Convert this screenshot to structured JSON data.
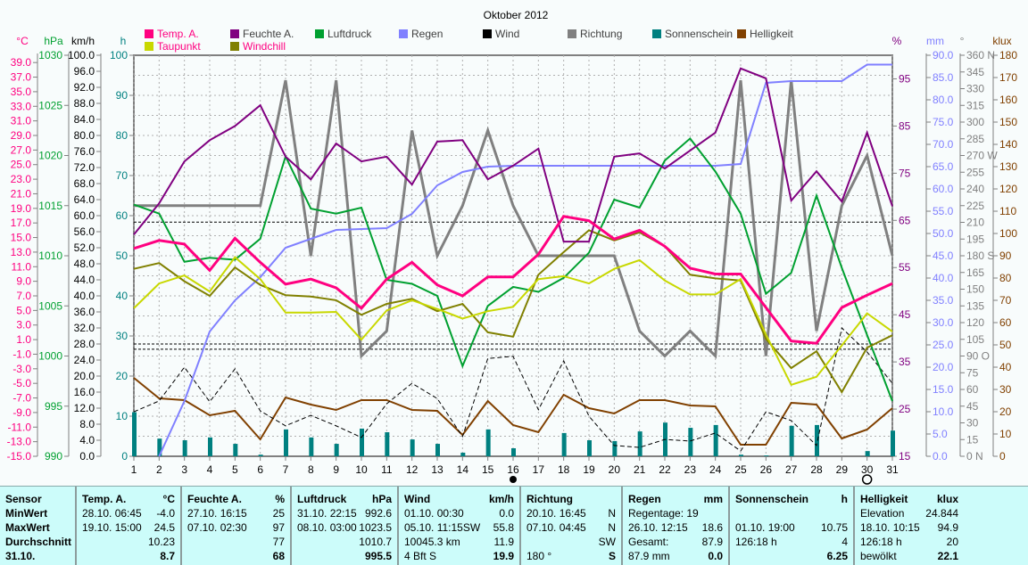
{
  "title": "Oktober 2012",
  "chart_data": {
    "type": "line",
    "title": "Oktober 2012",
    "x": [
      1,
      2,
      3,
      4,
      5,
      6,
      7,
      8,
      9,
      10,
      11,
      12,
      13,
      14,
      15,
      16,
      17,
      18,
      19,
      20,
      21,
      22,
      23,
      24,
      25,
      26,
      27,
      28,
      29,
      30,
      31
    ],
    "axes": {
      "temp": {
        "unit": "°C",
        "min": -15,
        "max": 40,
        "tick_start": 39,
        "tick_end": -15,
        "step": 2,
        "decimals": 1,
        "color": "#ff0080",
        "side": "left"
      },
      "hpa": {
        "unit": "hPa",
        "min": 990,
        "max": 1030,
        "tick_start": 1030,
        "tick_end": 990,
        "step": 5,
        "decimals": 0,
        "color": "#00a030",
        "side": "left"
      },
      "kmh": {
        "unit": "km/h",
        "min": 0,
        "max": 100,
        "tick_start": 100,
        "tick_end": 0,
        "step": 4,
        "decimals": 1,
        "color": "#000000",
        "side": "left"
      },
      "h": {
        "unit": "h",
        "min": 0,
        "max": 100,
        "tick_start": 100,
        "tick_end": 0,
        "step": 10,
        "decimals": 0,
        "color": "#008080",
        "side": "left"
      },
      "pct": {
        "unit": "%",
        "min": 15,
        "max": 100,
        "tick_start": 95,
        "tick_end": 15,
        "step": 10,
        "decimals": 0,
        "color": "#800080",
        "side": "right"
      },
      "mm": {
        "unit": "mm",
        "min": 0,
        "max": 90,
        "tick_start": 90,
        "tick_end": 0,
        "step": 5,
        "decimals": 1,
        "color": "#8080ff",
        "side": "right"
      },
      "deg": {
        "unit": "°",
        "min": 0,
        "max": 360,
        "tick_start": 360,
        "tick_end": 0,
        "step": 15,
        "decimals": 0,
        "color": "#808080",
        "side": "right",
        "compass": {
          "360": "N",
          "270": "W",
          "180": "S",
          "90": "O",
          "0": "N"
        }
      },
      "klux": {
        "unit": "klux",
        "min": 0,
        "max": 180,
        "tick_start": 180,
        "tick_end": 0,
        "step": 10,
        "decimals": 0,
        "color": "#804000",
        "side": "right"
      }
    },
    "series": [
      {
        "name": "Temp. A.",
        "axis": "temp",
        "color": "#ff0080",
        "kind": "line",
        "width": 3,
        "values": [
          13.5,
          14.6,
          14.1,
          10.5,
          14.9,
          11.6,
          8.6,
          9.3,
          8.1,
          5.3,
          9.3,
          11.6,
          8.5,
          7.0,
          9.6,
          9.6,
          12.7,
          17.9,
          17.3,
          14.8,
          16.0,
          13.8,
          10.8,
          10.0,
          10.0,
          5.4,
          0.8,
          0.5,
          5.4,
          7.1,
          8.7
        ]
      },
      {
        "name": "Taupunkt",
        "axis": "temp",
        "color": "#c8d800",
        "kind": "line",
        "width": 2,
        "values": [
          5.3,
          8.7,
          9.8,
          7.6,
          12.3,
          9.3,
          4.7,
          4.7,
          4.8,
          1.0,
          5.0,
          6.4,
          5.2,
          3.9,
          4.9,
          5.5,
          9.3,
          9.7,
          8.7,
          10.7,
          11.9,
          9.1,
          7.2,
          7.2,
          9.3,
          1.7,
          -5.2,
          -4.1,
          0.2,
          4.6,
          2.1
        ]
      },
      {
        "name": "Windchill",
        "axis": "temp",
        "color": "#808000",
        "kind": "line",
        "width": 2,
        "values": [
          10.7,
          11.5,
          9.0,
          7.0,
          10.9,
          8.5,
          7.1,
          6.9,
          6.4,
          4.4,
          5.9,
          6.6,
          4.9,
          5.9,
          2.0,
          1.4,
          9.9,
          13.0,
          16.0,
          14.6,
          15.7,
          13.8,
          9.9,
          9.4,
          9.1,
          1.1,
          -2.9,
          -0.6,
          -6.2,
          -0.1,
          1.6
        ]
      },
      {
        "name": "Feuchte A.",
        "axis": "pct",
        "color": "#800080",
        "kind": "line",
        "width": 2,
        "values": [
          62.0,
          68.6,
          77.5,
          82.0,
          85.0,
          89.4,
          78.5,
          73.7,
          81.3,
          77.5,
          78.5,
          72.6,
          81.7,
          82.0,
          73.7,
          76.6,
          80.2,
          60.5,
          60.5,
          78.5,
          79.2,
          76.0,
          79.8,
          83.6,
          97.2,
          95.1,
          69.2,
          75.4,
          69.0,
          83.6,
          68.0
        ]
      },
      {
        "name": "Luftdruck",
        "axis": "hpa",
        "color": "#00a030",
        "kind": "line",
        "width": 2,
        "values": [
          1015.1,
          1014.2,
          1009.4,
          1009.8,
          1009.6,
          1011.7,
          1019.9,
          1014.7,
          1014.2,
          1014.8,
          1007.6,
          1007.2,
          1006.0,
          999.0,
          1005.0,
          1006.9,
          1006.4,
          1007.8,
          1010.3,
          1015.6,
          1014.8,
          1019.5,
          1021.7,
          1018.4,
          1014.2,
          1006.2,
          1008.3,
          1016.0,
          1008.8,
          1002.1,
          995.5
        ]
      },
      {
        "name": "Regen",
        "axis": "mm",
        "color": "#8080ff",
        "kind": "line",
        "width": 2,
        "values": [
          null,
          0.0,
          12.4,
          28.0,
          35.0,
          40.2,
          46.8,
          48.8,
          50.8,
          51.0,
          51.2,
          54.4,
          60.8,
          63.8,
          65.0,
          65.2,
          65.2,
          65.2,
          65.2,
          65.2,
          65.2,
          65.2,
          65.2,
          65.2,
          65.6,
          83.8,
          84.2,
          84.2,
          84.2,
          87.9,
          87.9
        ]
      },
      {
        "name": "Wind",
        "axis": "kmh",
        "color": "#000000",
        "kind": "dashed",
        "width": 1,
        "values": [
          11.1,
          13.8,
          22.2,
          13.6,
          21.8,
          11.3,
          7.6,
          10.2,
          7.6,
          4.7,
          13.1,
          18.2,
          14.4,
          4.9,
          24.4,
          24.9,
          11.6,
          23.8,
          10.0,
          2.7,
          2.2,
          4.2,
          3.8,
          5.8,
          1.3,
          11.1,
          8.9,
          2.7,
          32.0,
          26.0,
          18.2
        ]
      },
      {
        "name": "Richtung",
        "axis": "deg",
        "color": "#808080",
        "kind": "line",
        "width": 3,
        "values": [
          225,
          225,
          225,
          225,
          225,
          225,
          337.5,
          180,
          337.5,
          90,
          112.5,
          292.5,
          180,
          225,
          292.5,
          225,
          180,
          180,
          180,
          180,
          112.5,
          90,
          112.5,
          90,
          337.5,
          90,
          337.5,
          112.5,
          225,
          270,
          180
        ]
      },
      {
        "name": "Sonnenschein",
        "axis": "h",
        "color": "#008080",
        "kind": "bar",
        "values": [
          11.0,
          4.4,
          4.0,
          4.7,
          3.1,
          0.4,
          6.7,
          4.7,
          3.1,
          6.9,
          6.0,
          4.2,
          3.1,
          0.9,
          6.7,
          2.0,
          0.0,
          5.8,
          4.0,
          3.8,
          6.2,
          8.4,
          7.1,
          7.8,
          0.4,
          0.2,
          7.6,
          7.8,
          0.0,
          1.3,
          6.4
        ]
      },
      {
        "name": "Helligkeit",
        "axis": "klux",
        "color": "#804000",
        "kind": "line",
        "width": 2,
        "values": [
          35.2,
          26.0,
          25.2,
          18.4,
          20.4,
          7.6,
          26.4,
          23.2,
          20.8,
          25.2,
          25.2,
          20.8,
          20.4,
          9.6,
          24.8,
          14.0,
          10.8,
          27.6,
          21.6,
          19.2,
          25.2,
          25.2,
          22.8,
          22.4,
          5.2,
          5.2,
          24.0,
          23.2,
          8.0,
          12.0,
          21.6
        ]
      }
    ],
    "reference_lines_kmh": [
      58.4,
      28.0,
      26.7
    ],
    "legend": {
      "placement": "top",
      "row1": [
        "Temp. A.",
        "Feuchte A.",
        "Luftdruck",
        "Regen",
        "Wind",
        "Richtung",
        "Sonnenschein",
        "Helligkeit"
      ],
      "row2": [
        "Taupunkt",
        "Windchill"
      ]
    },
    "grid": true,
    "markers": {
      "filled_circle_day": 16,
      "ring_day": 30
    }
  },
  "stats": {
    "sensor": {
      "header": "Sensor",
      "rows": [
        "MinWert",
        "MaxWert",
        "Durchschnitt",
        "31.10."
      ]
    },
    "columns": [
      {
        "name": "Temp. A.",
        "unit": "°C",
        "rows": [
          [
            "28.10.  06:45",
            "-4.0"
          ],
          [
            "19.10.  15:00",
            "24.5"
          ],
          [
            "",
            "10.23"
          ],
          [
            "",
            "8.7"
          ]
        ]
      },
      {
        "name": "Feuchte A.",
        "unit": "%",
        "rows": [
          [
            "27.10.  16:15",
            "25"
          ],
          [
            "07.10.  02:30",
            "97"
          ],
          [
            "",
            "77"
          ],
          [
            "",
            "68"
          ]
        ]
      },
      {
        "name": "Luftdruck",
        "unit": "hPa",
        "rows": [
          [
            "31.10.  22:15",
            "992.6"
          ],
          [
            "08.10.  03:00",
            "1023.5"
          ],
          [
            "",
            "1010.7"
          ],
          [
            "",
            "995.5"
          ]
        ]
      },
      {
        "name": "Wind",
        "unit": "km/h",
        "rows": [
          [
            "01.10.  00:30",
            "0.0"
          ],
          [
            "05.10.  11:15SW",
            "55.8"
          ],
          [
            "10045.3 km",
            "11.9"
          ],
          [
            " 4 Bft S",
            "19.9"
          ]
        ]
      },
      {
        "name": "Richtung",
        "unit": "",
        "rows": [
          [
            "20.10.  16:45",
            "N"
          ],
          [
            "07.10.  04:45",
            "N"
          ],
          [
            "",
            "SW"
          ],
          [
            " 180 °",
            "S"
          ]
        ]
      },
      {
        "name": "Regen",
        "unit": "mm",
        "rows": [
          [
            "Regentage: 19",
            ""
          ],
          [
            "26.10.  12:15",
            "18.6"
          ],
          [
            "Gesamt:",
            "87.9"
          ],
          [
            " 87.9 mm",
            "0.0"
          ]
        ]
      },
      {
        "name": "Sonnenschein",
        "unit": "h",
        "rows": [
          [
            "",
            ""
          ],
          [
            "01.10.  19:00",
            "10.75"
          ],
          [
            "126:18 h",
            "4"
          ],
          [
            "",
            "6.25"
          ]
        ]
      },
      {
        "name": "Helligkeit",
        "unit": "klux",
        "rows": [
          [
            "Elevation",
            "24.844"
          ],
          [
            "18.10.  10:15",
            "94.9"
          ],
          [
            "126:18 h",
            "20"
          ],
          [
            "bewölkt",
            "22.1"
          ]
        ]
      }
    ]
  }
}
